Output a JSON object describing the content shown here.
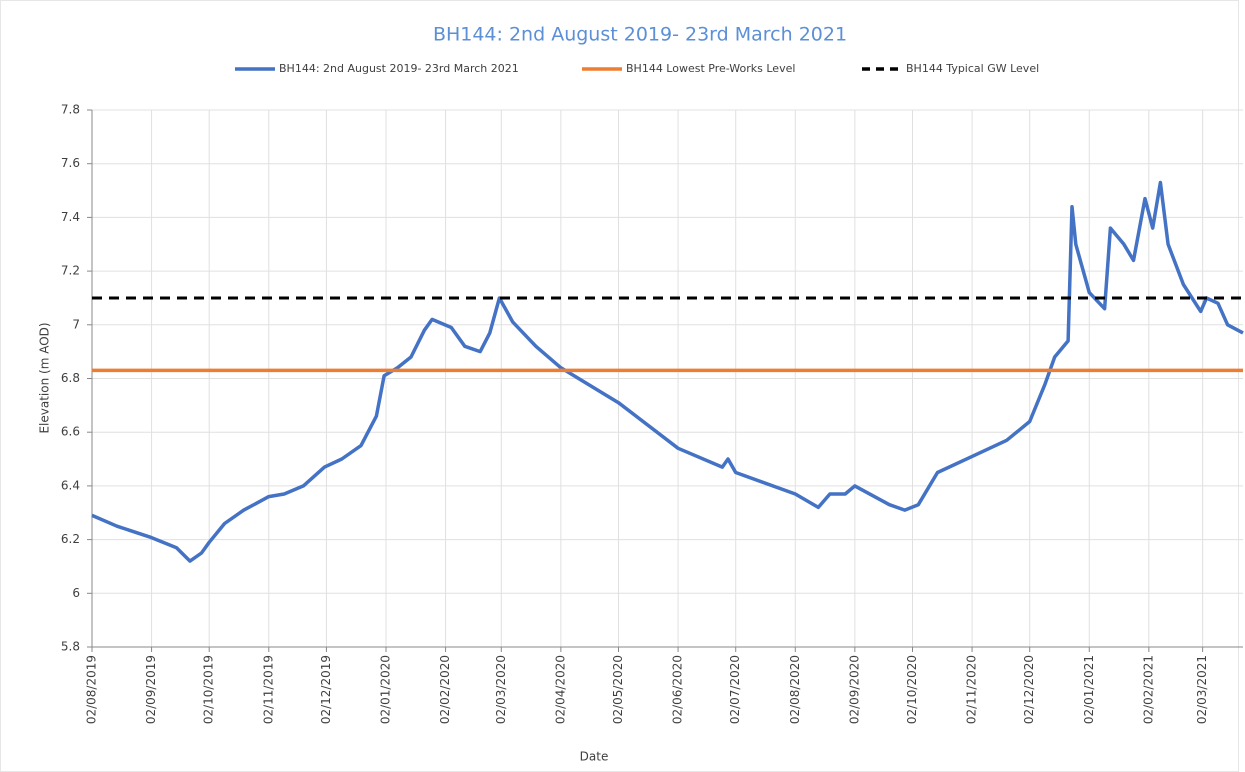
{
  "chart_data": {
    "type": "line",
    "title": "BH144: 2nd August 2019- 23rd March 2021",
    "x_label": "Date",
    "y_label": "Elevation (m AOD)",
    "xlim": [
      "2019-08-02",
      "2021-03-23"
    ],
    "xticks": [
      {
        "value": "2019-08-02",
        "label": "02/08/2019"
      },
      {
        "value": "2019-09-02",
        "label": "02/09/2019"
      },
      {
        "value": "2019-10-02",
        "label": "02/10/2019"
      },
      {
        "value": "2019-11-02",
        "label": "02/11/2019"
      },
      {
        "value": "2019-12-02",
        "label": "02/12/2019"
      },
      {
        "value": "2020-01-02",
        "label": "02/01/2020"
      },
      {
        "value": "2020-02-02",
        "label": "02/02/2020"
      },
      {
        "value": "2020-03-02",
        "label": "02/03/2020"
      },
      {
        "value": "2020-04-02",
        "label": "02/04/2020"
      },
      {
        "value": "2020-05-02",
        "label": "02/05/2020"
      },
      {
        "value": "2020-06-02",
        "label": "02/06/2020"
      },
      {
        "value": "2020-07-02",
        "label": "02/07/2020"
      },
      {
        "value": "2020-08-02",
        "label": "02/08/2020"
      },
      {
        "value": "2020-09-02",
        "label": "02/09/2020"
      },
      {
        "value": "2020-10-02",
        "label": "02/10/2020"
      },
      {
        "value": "2020-11-02",
        "label": "02/11/2020"
      },
      {
        "value": "2020-12-02",
        "label": "02/12/2020"
      },
      {
        "value": "2021-01-02",
        "label": "02/01/2021"
      },
      {
        "value": "2021-02-02",
        "label": "02/02/2021"
      },
      {
        "value": "2021-03-02",
        "label": "02/03/2021"
      }
    ],
    "ylim": [
      5.8,
      7.8
    ],
    "yticks": [
      5.8,
      6,
      6.2,
      6.4,
      6.6,
      6.8,
      7,
      7.2,
      7.4,
      7.6,
      7.8
    ],
    "grid": true,
    "legend": "top",
    "series": [
      {
        "name": "BH144: 2nd August 2019- 23rd March 2021",
        "color": "#4472c4",
        "dash": false,
        "x": [
          "2019-08-02",
          "2019-08-15",
          "2019-09-01",
          "2019-09-15",
          "2019-09-22",
          "2019-09-28",
          "2019-10-02",
          "2019-10-10",
          "2019-10-20",
          "2019-11-02",
          "2019-11-10",
          "2019-11-20",
          "2019-12-01",
          "2019-12-10",
          "2019-12-20",
          "2019-12-28",
          "2020-01-01",
          "2020-01-08",
          "2020-01-15",
          "2020-01-22",
          "2020-01-26",
          "2020-02-05",
          "2020-02-12",
          "2020-02-20",
          "2020-02-25",
          "2020-03-01",
          "2020-03-08",
          "2020-03-20",
          "2020-04-02",
          "2020-05-02",
          "2020-06-02",
          "2020-06-25",
          "2020-06-28",
          "2020-07-02",
          "2020-08-02",
          "2020-08-14",
          "2020-08-20",
          "2020-08-28",
          "2020-09-02",
          "2020-09-20",
          "2020-09-28",
          "2020-10-05",
          "2020-10-15",
          "2020-11-02",
          "2020-11-20",
          "2020-12-02",
          "2020-12-10",
          "2020-12-15",
          "2020-12-22",
          "2020-12-24",
          "2020-12-26",
          "2021-01-02",
          "2021-01-10",
          "2021-01-13",
          "2021-01-20",
          "2021-01-25",
          "2021-01-31",
          "2021-02-04",
          "2021-02-08",
          "2021-02-12",
          "2021-02-20",
          "2021-03-01",
          "2021-03-04",
          "2021-03-10",
          "2021-03-15",
          "2021-03-23"
        ],
        "values": [
          6.29,
          6.25,
          6.21,
          6.17,
          6.12,
          6.15,
          6.19,
          6.26,
          6.31,
          6.36,
          6.37,
          6.4,
          6.47,
          6.5,
          6.55,
          6.66,
          6.81,
          6.84,
          6.88,
          6.98,
          7.02,
          6.99,
          6.92,
          6.9,
          6.97,
          7.1,
          7.01,
          6.92,
          6.84,
          6.71,
          6.54,
          6.47,
          6.5,
          6.45,
          6.37,
          6.32,
          6.37,
          6.37,
          6.4,
          6.33,
          6.31,
          6.33,
          6.45,
          6.51,
          6.57,
          6.64,
          6.78,
          6.88,
          6.94,
          7.44,
          7.3,
          7.12,
          7.06,
          7.36,
          7.3,
          7.24,
          7.47,
          7.36,
          7.53,
          7.3,
          7.15,
          7.05,
          7.1,
          7.08,
          7.0,
          6.97
        ]
      },
      {
        "name": "BH144 Lowest Pre-Works Level",
        "color": "#ed7d31",
        "dash": false,
        "x": [
          "2019-08-02",
          "2021-03-23"
        ],
        "values": [
          6.83,
          6.83
        ]
      },
      {
        "name": "BH144 Typical GW Level",
        "color": "#000000",
        "dash": true,
        "x": [
          "2019-08-02",
          "2021-03-23"
        ],
        "values": [
          7.1,
          7.1
        ]
      }
    ]
  }
}
